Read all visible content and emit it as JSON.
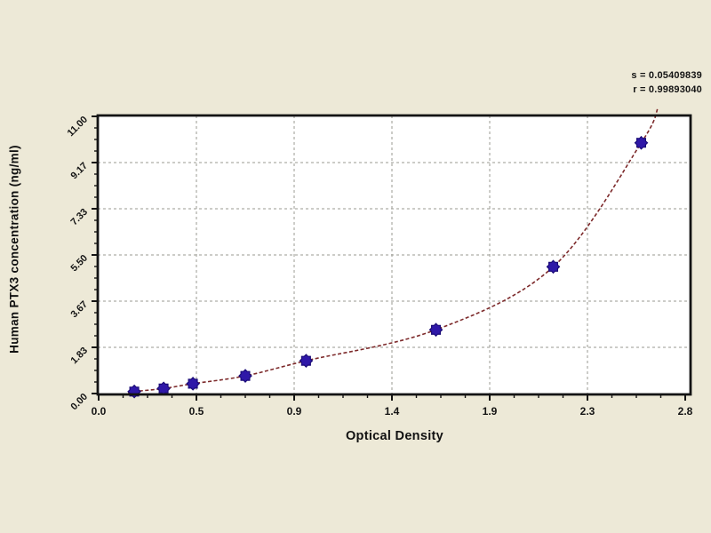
{
  "page": {
    "background_color": "#EDE9D7",
    "plot_background_color": "#FFFFFF"
  },
  "stats": {
    "s_label": "s = 0.05409839",
    "r_label": "r = 0.99893040"
  },
  "chart_data": {
    "type": "scatter",
    "title": "",
    "xlabel": "Optical Density",
    "ylabel": "Human PTX3 concentration (ng/ml)",
    "xlim": [
      0,
      2.8
    ],
    "ylim": [
      0,
      11
    ],
    "x_tick_labels": [
      "0.0",
      "0.5",
      "0.9",
      "1.4",
      "1.9",
      "2.3",
      "2.8"
    ],
    "x_tick_values": [
      0,
      0.4667,
      0.9333,
      1.4,
      1.8667,
      2.3333,
      2.8
    ],
    "y_tick_labels": [
      "0.00",
      "1.83",
      "3.67",
      "5.50",
      "7.33",
      "9.17",
      "11.00"
    ],
    "y_tick_values": [
      0,
      1.8333,
      3.6667,
      5.5,
      7.3333,
      9.1667,
      11
    ],
    "minor_ticks_per_interval": 3,
    "grid": true,
    "grid_style": "dashed",
    "legend_position": "none",
    "series": [
      {
        "name": "standard-points",
        "points": [
          [
            0.17,
            0.08
          ],
          [
            0.31,
            0.2
          ],
          [
            0.45,
            0.39
          ],
          [
            0.7,
            0.7
          ],
          [
            0.99,
            1.3
          ],
          [
            1.61,
            2.53
          ],
          [
            2.17,
            5.03
          ],
          [
            2.59,
            9.95
          ]
        ]
      }
    ],
    "fit_curve": {
      "description": "smooth fitted standard curve through the points",
      "start": [
        0.14,
        0.03
      ],
      "end": [
        2.67,
        11.35
      ]
    },
    "colors": {
      "point_fill": "#2F18A8",
      "point_stroke": "#1B0C78",
      "curve": "#7D2A2B",
      "grid": "#9A9A92",
      "axis": "#141414"
    }
  }
}
